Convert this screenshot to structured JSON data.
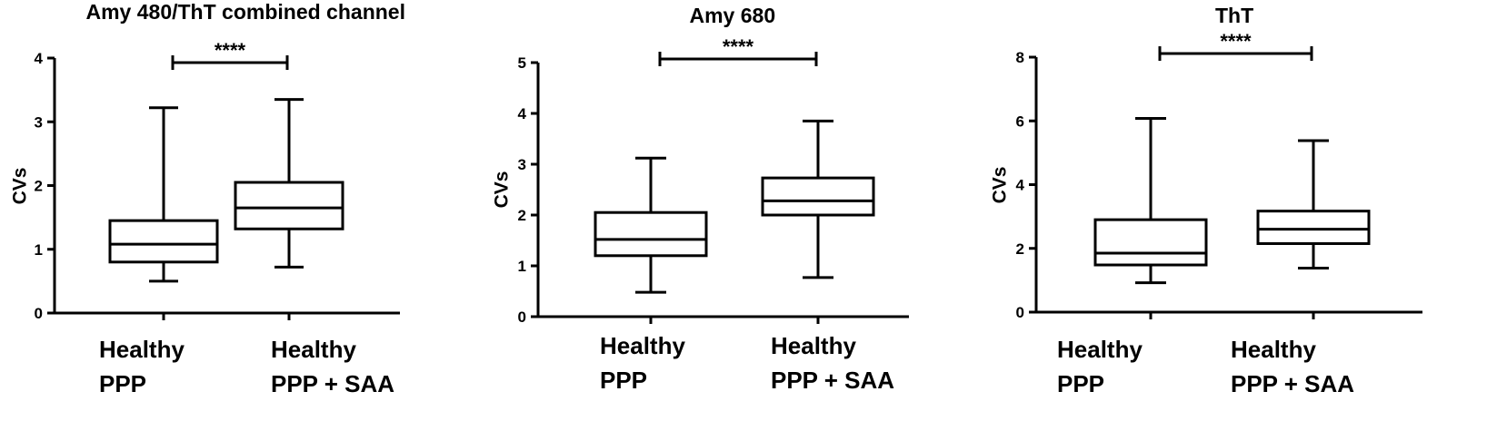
{
  "chart_data": [
    {
      "type": "box",
      "title": "Amy 480/ThT combined channel",
      "ylabel": "CVs",
      "ylim": [
        0,
        4
      ],
      "yticks": [
        0,
        1,
        2,
        3,
        4
      ],
      "categories": [
        {
          "lines": [
            "Healthy",
            "PPP"
          ]
        },
        {
          "lines": [
            "Healthy",
            "PPP + SAA"
          ]
        }
      ],
      "boxes": [
        {
          "min": 0.5,
          "q1": 0.8,
          "median": 1.08,
          "q3": 1.45,
          "max": 3.22
        },
        {
          "min": 0.72,
          "q1": 1.32,
          "median": 1.65,
          "q3": 2.05,
          "max": 3.35
        }
      ],
      "significance": {
        "label": "****",
        "between": [
          0,
          1
        ],
        "y": 3.93
      }
    },
    {
      "type": "box",
      "title": "Amy 680",
      "ylabel": "CVs",
      "ylim": [
        0,
        5
      ],
      "yticks": [
        0,
        1,
        2,
        3,
        4,
        5
      ],
      "categories": [
        {
          "lines": [
            "Healthy",
            "PPP"
          ]
        },
        {
          "lines": [
            "Healthy",
            "PPP + SAA"
          ]
        }
      ],
      "boxes": [
        {
          "min": 0.48,
          "q1": 1.2,
          "median": 1.52,
          "q3": 2.05,
          "max": 3.12
        },
        {
          "min": 0.77,
          "q1": 2.0,
          "median": 2.28,
          "q3": 2.73,
          "max": 3.85
        }
      ],
      "significance": {
        "label": "****",
        "between": [
          0,
          1
        ],
        "y": 5.0
      }
    },
    {
      "type": "box",
      "title": "ThT",
      "ylabel": "CVs",
      "ylim": [
        0,
        8
      ],
      "yticks": [
        0,
        2,
        4,
        6,
        8
      ],
      "categories": [
        {
          "lines": [
            "Healthy",
            "PPP"
          ]
        },
        {
          "lines": [
            "Healthy",
            "PPP + SAA"
          ]
        }
      ],
      "boxes": [
        {
          "min": 0.92,
          "q1": 1.48,
          "median": 1.85,
          "q3": 2.9,
          "max": 6.08
        },
        {
          "min": 1.38,
          "q1": 2.15,
          "median": 2.6,
          "q3": 3.17,
          "max": 5.38
        }
      ],
      "significance": {
        "label": "****",
        "between": [
          0,
          1
        ],
        "y": 8.0
      }
    }
  ]
}
